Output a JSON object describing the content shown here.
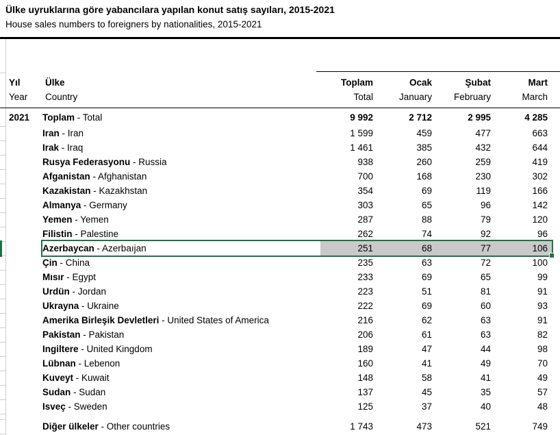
{
  "header": {
    "title_tr": "Ülke uyruklarına göre yabancılara yapılan konut satış sayıları, 2015-2021",
    "title_en": "House sales numbers to foreigners by nationalities, 2015-2021"
  },
  "table": {
    "columns": {
      "year_tr": "Yıl",
      "year_en": "Year",
      "country_tr": "Ülke",
      "country_en": "Country",
      "total_tr": "Toplam",
      "total_en": "Total",
      "jan_tr": "Ocak",
      "jan_en": "January",
      "feb_tr": "Şubat",
      "feb_en": "February",
      "mar_tr": "Mart",
      "mar_en": "March"
    },
    "rows": [
      {
        "year": "2021",
        "name_tr": "Toplam",
        "name_en": "Total",
        "total": "9 992",
        "jan": "2 712",
        "feb": "2 995",
        "mar": "4 285",
        "kind": "total"
      },
      {
        "year": "",
        "name_tr": "Iran",
        "name_en": "Iran",
        "total": "1 599",
        "jan": "459",
        "feb": "477",
        "mar": "663"
      },
      {
        "year": "",
        "name_tr": "Irak",
        "name_en": "Iraq",
        "total": "1 461",
        "jan": "385",
        "feb": "432",
        "mar": "644"
      },
      {
        "year": "",
        "name_tr": "Rusya Federasyonu",
        "name_en": "Russia",
        "total": "938",
        "jan": "260",
        "feb": "259",
        "mar": "419"
      },
      {
        "year": "",
        "name_tr": "Afganistan",
        "name_en": "Afghanistan",
        "total": "700",
        "jan": "168",
        "feb": "230",
        "mar": "302"
      },
      {
        "year": "",
        "name_tr": "Kazakistan",
        "name_en": "Kazakhstan",
        "total": "354",
        "jan": "69",
        "feb": "119",
        "mar": "166"
      },
      {
        "year": "",
        "name_tr": "Almanya",
        "name_en": "Germany",
        "total": "303",
        "jan": "65",
        "feb": "96",
        "mar": "142"
      },
      {
        "year": "",
        "name_tr": "Yemen",
        "name_en": "Yemen",
        "total": "287",
        "jan": "88",
        "feb": "79",
        "mar": "120"
      },
      {
        "year": "",
        "name_tr": "Filistin",
        "name_en": "Palestine",
        "total": "262",
        "jan": "74",
        "feb": "92",
        "mar": "96"
      },
      {
        "year": "",
        "name_tr": "Azerbaycan",
        "name_en": "Azerbaıjan",
        "total": "251",
        "jan": "68",
        "feb": "77",
        "mar": "106",
        "selected": true
      },
      {
        "year": "",
        "name_tr": "Çin",
        "name_en": "China",
        "total": "235",
        "jan": "63",
        "feb": "72",
        "mar": "100"
      },
      {
        "year": "",
        "name_tr": "Mısır",
        "name_en": "Egypt",
        "total": "233",
        "jan": "69",
        "feb": "65",
        "mar": "99"
      },
      {
        "year": "",
        "name_tr": "Urdün",
        "name_en": "Jordan",
        "total": "223",
        "jan": "51",
        "feb": "81",
        "mar": "91"
      },
      {
        "year": "",
        "name_tr": "Ukrayna",
        "name_en": "Ukraine",
        "total": "222",
        "jan": "69",
        "feb": "60",
        "mar": "93"
      },
      {
        "year": "",
        "name_tr": "Amerika Birleşik Devletleri",
        "name_en": "United States of America",
        "total": "216",
        "jan": "62",
        "feb": "63",
        "mar": "91"
      },
      {
        "year": "",
        "name_tr": "Pakistan",
        "name_en": "Pakistan",
        "total": "206",
        "jan": "61",
        "feb": "63",
        "mar": "82"
      },
      {
        "year": "",
        "name_tr": "Ingiltere",
        "name_en": "United Kingdom",
        "total": "189",
        "jan": "47",
        "feb": "44",
        "mar": "98"
      },
      {
        "year": "",
        "name_tr": "Lübnan",
        "name_en": "Lebenon",
        "total": "160",
        "jan": "41",
        "feb": "49",
        "mar": "70"
      },
      {
        "year": "",
        "name_tr": "Kuveyt",
        "name_en": "Kuwait",
        "total": "148",
        "jan": "58",
        "feb": "41",
        "mar": "49"
      },
      {
        "year": "",
        "name_tr": "Sudan",
        "name_en": "Sudan",
        "total": "137",
        "jan": "45",
        "feb": "35",
        "mar": "57"
      },
      {
        "year": "",
        "name_tr": "Isveç",
        "name_en": "Sweden",
        "total": "125",
        "jan": "37",
        "feb": "40",
        "mar": "48"
      },
      {
        "year": "",
        "name_tr": "Diğer ülkeler",
        "name_en": "Other countries",
        "total": "1 743",
        "jan": "473",
        "feb": "521",
        "mar": "749",
        "kind": "other"
      }
    ],
    "name_separator": " - "
  },
  "selection": {
    "selected_country": "Azerbaycan",
    "selected_values": [
      "251",
      "68",
      "77",
      "106"
    ]
  },
  "colors": {
    "selection_green": "#1E7145",
    "highlight_gray": "#c9c9c9",
    "gridline": "#cfcfcf"
  }
}
